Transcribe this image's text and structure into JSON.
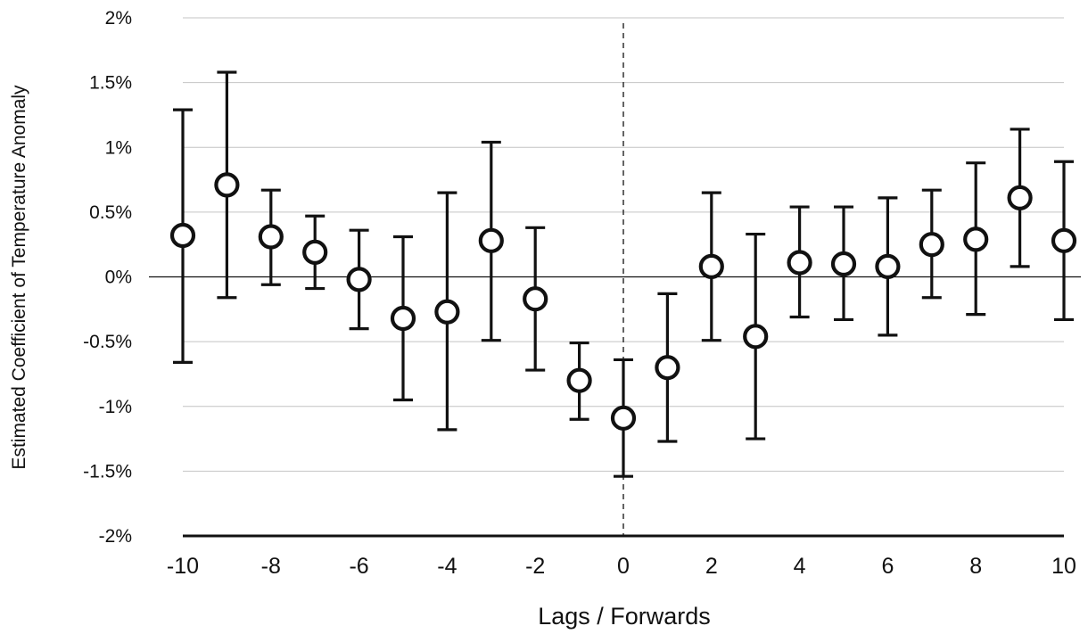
{
  "chart_data": {
    "type": "scatter",
    "title": "",
    "xlabel": "Lags / Forwards",
    "ylabel": "Estimated Coefficient of Temperature Anomaly",
    "xlim": [
      -10,
      10
    ],
    "ylim": [
      -2,
      2
    ],
    "x_ticks": [
      -10,
      -8,
      -6,
      -4,
      -2,
      0,
      2,
      4,
      6,
      8,
      10
    ],
    "x_tick_labels": [
      "-10",
      "-8",
      "-6",
      "-4",
      "-2",
      "0",
      "2",
      "4",
      "6",
      "8",
      "10"
    ],
    "y_ticks": [
      -2,
      -1.5,
      -1,
      -0.5,
      0,
      0.5,
      1,
      1.5,
      2
    ],
    "y_tick_labels": [
      "-2%",
      "-1.5%",
      "-1%",
      "-0.5%",
      "0%",
      "0.5%",
      "1%",
      "1.5%",
      "2%"
    ],
    "grid": "horizontal",
    "reference_line_x": 0,
    "series": [
      {
        "marker": "open-circle",
        "error_bars": true,
        "points": [
          {
            "x": -10,
            "y": 0.32,
            "low": -0.66,
            "high": 1.29
          },
          {
            "x": -9,
            "y": 0.71,
            "low": -0.16,
            "high": 1.58
          },
          {
            "x": -8,
            "y": 0.31,
            "low": -0.06,
            "high": 0.67
          },
          {
            "x": -7,
            "y": 0.19,
            "low": -0.09,
            "high": 0.47
          },
          {
            "x": -6,
            "y": -0.02,
            "low": -0.4,
            "high": 0.36
          },
          {
            "x": -5,
            "y": -0.32,
            "low": -0.95,
            "high": 0.31
          },
          {
            "x": -4,
            "y": -0.27,
            "low": -1.18,
            "high": 0.65
          },
          {
            "x": -3,
            "y": 0.28,
            "low": -0.49,
            "high": 1.04
          },
          {
            "x": -2,
            "y": -0.17,
            "low": -0.72,
            "high": 0.38
          },
          {
            "x": -1,
            "y": -0.8,
            "low": -1.1,
            "high": -0.51
          },
          {
            "x": 0,
            "y": -1.09,
            "low": -1.54,
            "high": -0.64
          },
          {
            "x": 1,
            "y": -0.7,
            "low": -1.27,
            "high": -0.13
          },
          {
            "x": 2,
            "y": 0.08,
            "low": -0.49,
            "high": 0.65
          },
          {
            "x": 3,
            "y": -0.46,
            "low": -1.25,
            "high": 0.33
          },
          {
            "x": 4,
            "y": 0.11,
            "low": -0.31,
            "high": 0.54
          },
          {
            "x": 5,
            "y": 0.1,
            "low": -0.33,
            "high": 0.54
          },
          {
            "x": 6,
            "y": 0.08,
            "low": -0.45,
            "high": 0.61
          },
          {
            "x": 7,
            "y": 0.25,
            "low": -0.16,
            "high": 0.67
          },
          {
            "x": 8,
            "y": 0.29,
            "low": -0.29,
            "high": 0.88
          },
          {
            "x": 9,
            "y": 0.61,
            "low": 0.08,
            "high": 1.14
          },
          {
            "x": 10,
            "y": 0.28,
            "low": -0.33,
            "high": 0.89
          }
        ]
      }
    ]
  }
}
